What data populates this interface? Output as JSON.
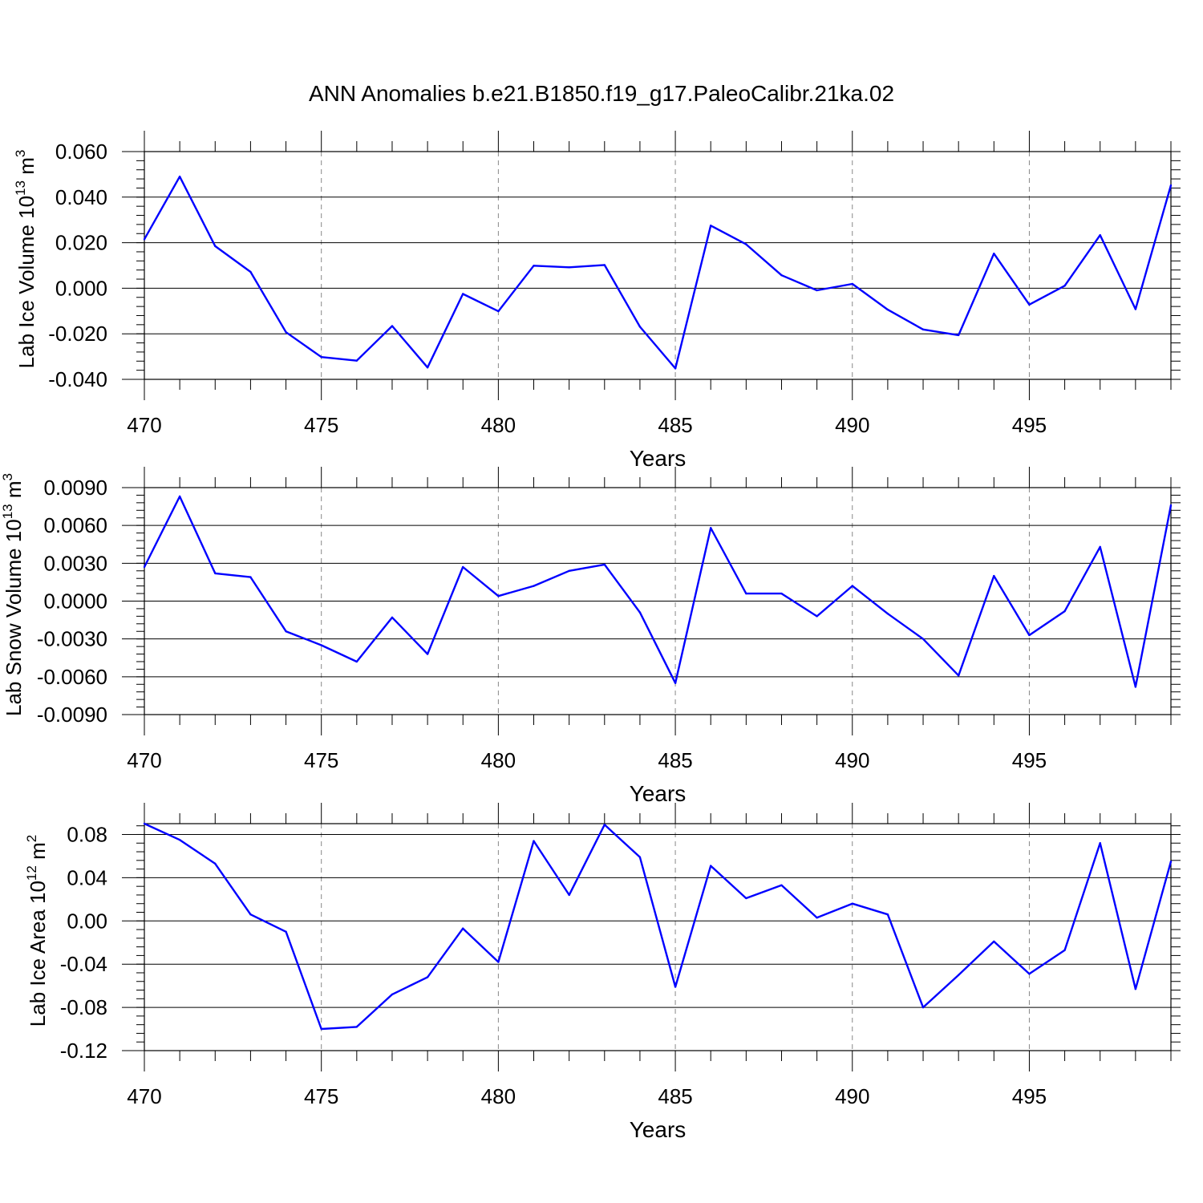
{
  "title": "ANN Anomalies b.e21.B1850.f19_g17.PaleoCalibr.21ka.02",
  "line_color": "#0000ff",
  "chart_data": [
    {
      "type": "line",
      "ylabel_main": "Lab Ice Volume 10",
      "ylabel_exp": "13",
      "ylabel_unit": " m",
      "ylabel_unit_exp": "3",
      "xlabel": "Years",
      "xlim": [
        470,
        499
      ],
      "ylim": [
        -0.04,
        0.06
      ],
      "yticks": [
        -0.04,
        -0.02,
        0.0,
        0.02,
        0.04,
        0.06
      ],
      "ytick_labels": [
        "-0.040",
        "-0.020",
        "0.000",
        "0.020",
        "0.040",
        "0.060"
      ],
      "xticks": [
        470,
        475,
        480,
        485,
        490,
        495
      ],
      "xtick_labels": [
        "470",
        "475",
        "480",
        "485",
        "490",
        "495"
      ],
      "x": [
        470,
        471,
        472,
        473,
        474,
        475,
        476,
        477,
        478,
        479,
        480,
        481,
        482,
        483,
        484,
        485,
        486,
        487,
        488,
        489,
        490,
        491,
        492,
        493,
        494,
        495,
        496,
        497,
        498,
        499
      ],
      "y": [
        0.0215,
        0.049,
        0.0185,
        0.0072,
        -0.0193,
        -0.0302,
        -0.0318,
        -0.0166,
        -0.0348,
        -0.0025,
        -0.0101,
        0.0099,
        0.0092,
        0.0102,
        -0.0169,
        -0.0352,
        0.0275,
        0.0193,
        0.0057,
        -0.0009,
        0.0019,
        -0.0094,
        -0.0181,
        -0.0206,
        0.0152,
        -0.0072,
        0.0011,
        0.0233,
        -0.0092,
        0.0452
      ]
    },
    {
      "type": "line",
      "ylabel_main": "Lab Snow Volume 10",
      "ylabel_exp": "13",
      "ylabel_unit": " m",
      "ylabel_unit_exp": "3",
      "xlabel": "Years",
      "xlim": [
        470,
        499
      ],
      "ylim": [
        -0.009,
        0.009
      ],
      "yticks": [
        -0.009,
        -0.006,
        -0.003,
        0.0,
        0.003,
        0.006,
        0.009
      ],
      "ytick_labels": [
        "-0.0090",
        "-0.0060",
        "-0.0030",
        "0.0000",
        "0.0030",
        "0.0060",
        "0.0090"
      ],
      "xticks": [
        470,
        475,
        480,
        485,
        490,
        495
      ],
      "xtick_labels": [
        "470",
        "475",
        "480",
        "485",
        "490",
        "495"
      ],
      "x": [
        470,
        471,
        472,
        473,
        474,
        475,
        476,
        477,
        478,
        479,
        480,
        481,
        482,
        483,
        484,
        485,
        486,
        487,
        488,
        489,
        490,
        491,
        492,
        493,
        494,
        495,
        496,
        497,
        498,
        499
      ],
      "y": [
        0.0027,
        0.0083,
        0.0022,
        0.0019,
        -0.0024,
        -0.0035,
        -0.0048,
        -0.0013,
        -0.0042,
        0.0027,
        0.0004,
        0.0012,
        0.0024,
        0.0029,
        -0.0009,
        -0.0065,
        0.0058,
        0.0006,
        0.0006,
        -0.0012,
        0.0012,
        -0.001,
        -0.003,
        -0.0059,
        0.002,
        -0.0027,
        -0.0008,
        0.0043,
        -0.0068,
        0.0076
      ]
    },
    {
      "type": "line",
      "ylabel_main": "Lab Ice Area 10",
      "ylabel_exp": "12",
      "ylabel_unit": " m",
      "ylabel_unit_exp": "2",
      "xlabel": "Years",
      "xlim": [
        470,
        499
      ],
      "ylim": [
        -0.12,
        0.09
      ],
      "yticks": [
        -0.12,
        -0.08,
        -0.04,
        0.0,
        0.04,
        0.08
      ],
      "ytick_labels": [
        "-0.12",
        "-0.08",
        "-0.04",
        "0.00",
        "0.04",
        "0.08"
      ],
      "xticks": [
        470,
        475,
        480,
        485,
        490,
        495
      ],
      "xtick_labels": [
        "470",
        "475",
        "480",
        "485",
        "490",
        "495"
      ],
      "x": [
        470,
        471,
        472,
        473,
        474,
        475,
        476,
        477,
        478,
        479,
        480,
        481,
        482,
        483,
        484,
        485,
        486,
        487,
        488,
        489,
        490,
        491,
        492,
        493,
        494,
        495,
        496,
        497,
        498,
        499
      ],
      "y": [
        0.09,
        0.075,
        0.053,
        0.006,
        -0.01,
        -0.1,
        -0.098,
        -0.068,
        -0.052,
        -0.007,
        -0.038,
        0.074,
        0.024,
        0.089,
        0.059,
        -0.061,
        0.051,
        0.021,
        0.033,
        0.003,
        0.016,
        0.006,
        -0.08,
        -0.05,
        -0.019,
        -0.049,
        -0.027,
        0.072,
        -0.063,
        0.055
      ]
    }
  ]
}
